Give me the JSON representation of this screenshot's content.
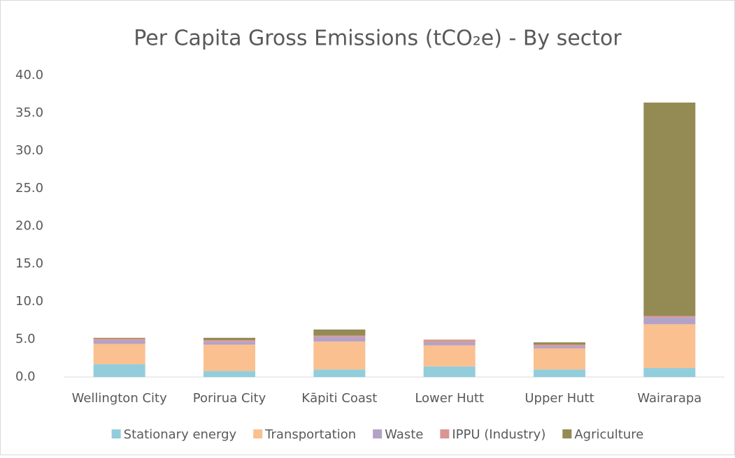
{
  "chart_data": {
    "type": "stacked_bar",
    "title": "Per Capita Gross Emissions (tCO₂e) - By sector",
    "categories": [
      "Wellington City",
      "Porirua City",
      "Kāpiti Coast",
      "Lower Hutt",
      "Upper Hutt",
      "Wairarapa"
    ],
    "series": [
      {
        "name": "Stationary energy",
        "color": "#92cddc",
        "values": [
          1.7,
          0.8,
          1.0,
          1.4,
          1.0,
          1.2
        ]
      },
      {
        "name": "Transportation",
        "color": "#fac090",
        "values": [
          2.7,
          3.5,
          3.7,
          2.8,
          2.8,
          5.8
        ]
      },
      {
        "name": "Waste",
        "color": "#b3a2c7",
        "values": [
          0.5,
          0.4,
          0.6,
          0.4,
          0.3,
          0.9
        ]
      },
      {
        "name": "IPPU (Industry)",
        "color": "#d99694",
        "values": [
          0.2,
          0.2,
          0.2,
          0.3,
          0.2,
          0.2
        ]
      },
      {
        "name": "Agriculture",
        "color": "#948a54",
        "values": [
          0.1,
          0.3,
          0.8,
          0.05,
          0.3,
          28.3
        ]
      }
    ],
    "ylim": [
      0,
      40
    ],
    "yticks": [
      {
        "value": 0,
        "label": "0.0"
      },
      {
        "value": 5,
        "label": "5.0"
      },
      {
        "value": 10,
        "label": "10.0"
      },
      {
        "value": 15,
        "label": "15.0"
      },
      {
        "value": 20,
        "label": "20.0"
      },
      {
        "value": 25,
        "label": "25.0"
      },
      {
        "value": 30,
        "label": "30.0"
      },
      {
        "value": 35,
        "label": "35.0"
      },
      {
        "value": 40,
        "label": "40.0"
      }
    ],
    "grid": false,
    "legend": "bottom"
  }
}
